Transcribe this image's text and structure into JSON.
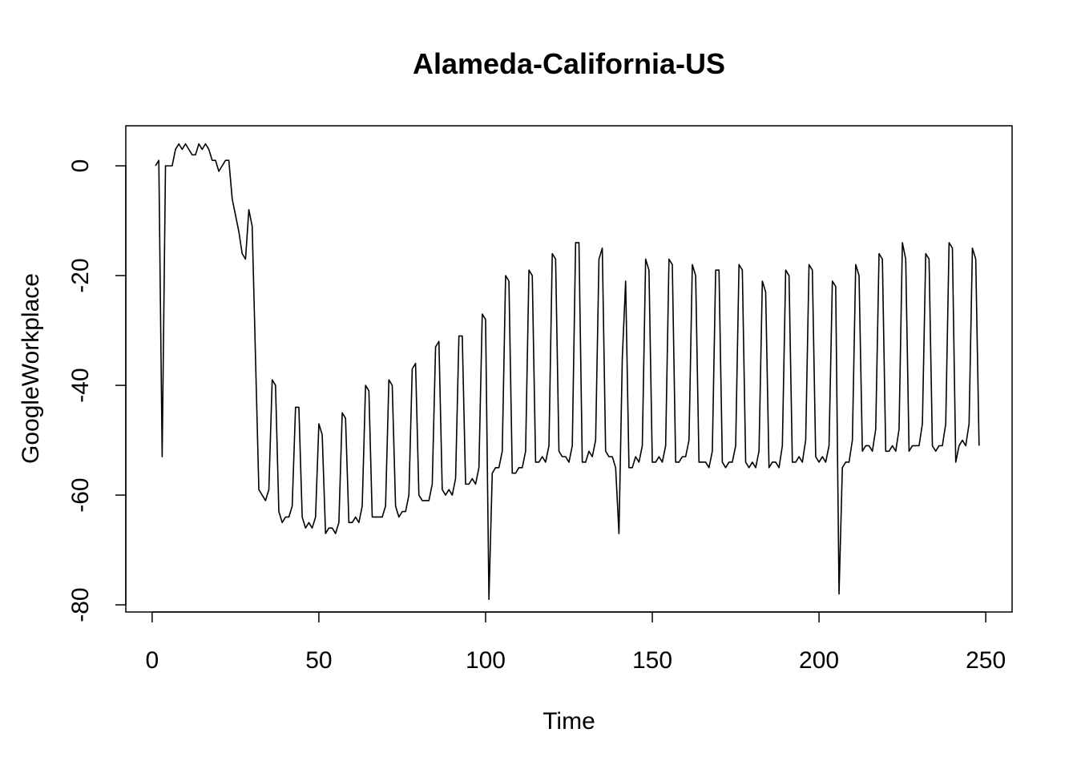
{
  "chart_data": {
    "type": "line",
    "title": "Alameda-California-US",
    "xlabel": "Time",
    "ylabel": "GoogleWorkplace",
    "xlim": [
      -7.9,
      257.9
    ],
    "ylim": [
      -81.3,
      7.3
    ],
    "x_ticks": [
      0,
      50,
      100,
      150,
      200,
      250
    ],
    "y_ticks": [
      0,
      -20,
      -40,
      -60,
      -80
    ],
    "x_tick_labels": [
      "0",
      "50",
      "100",
      "150",
      "200",
      "250"
    ],
    "y_tick_labels": [
      "0",
      "-20",
      "-40",
      "-60",
      "-80"
    ],
    "grid": false,
    "legend": "none",
    "line_color": "#000000",
    "series": [
      {
        "x_start": 1,
        "values": [
          0,
          1,
          -53,
          0,
          0,
          0,
          3,
          4,
          3,
          4,
          3,
          2,
          2,
          4,
          3,
          4,
          3,
          1,
          1,
          -1,
          0,
          1,
          1,
          -6,
          -9,
          -12,
          -16,
          -17,
          -8,
          -11,
          -35,
          -59,
          -60,
          -61,
          -59,
          -39,
          -40,
          -63,
          -65,
          -64,
          -64,
          -62,
          -44,
          -44,
          -64,
          -66,
          -65,
          -66,
          -64,
          -47,
          -49,
          -67,
          -66,
          -66,
          -67,
          -65,
          -45,
          -46,
          -65,
          -65,
          -64,
          -65,
          -62,
          -40,
          -41,
          -64,
          -64,
          -64,
          -64,
          -62,
          -39,
          -40,
          -62,
          -64,
          -63,
          -63,
          -60,
          -37,
          -36,
          -60,
          -61,
          -61,
          -61,
          -58,
          -33,
          -32,
          -59,
          -60,
          -59,
          -60,
          -57,
          -31,
          -31,
          -58,
          -58,
          -57,
          -58,
          -55,
          -27,
          -28,
          -79,
          -56,
          -55,
          -55,
          -52,
          -20,
          -21,
          -56,
          -56,
          -55,
          -55,
          -52,
          -19,
          -20,
          -54,
          -54,
          -53,
          -54,
          -51,
          -16,
          -17,
          -52,
          -53,
          -53,
          -54,
          -51,
          -14,
          -14,
          -54,
          -54,
          -52,
          -53,
          -50,
          -17,
          -15,
          -52,
          -53,
          -53,
          -55,
          -67,
          -35,
          -21,
          -55,
          -55,
          -53,
          -54,
          -51,
          -17,
          -19,
          -54,
          -54,
          -53,
          -54,
          -51,
          -17,
          -18,
          -54,
          -54,
          -53,
          -53,
          -50,
          -18,
          -20,
          -54,
          -54,
          -54,
          -55,
          -52,
          -19,
          -19,
          -54,
          -55,
          -54,
          -54,
          -51,
          -18,
          -19,
          -54,
          -55,
          -54,
          -55,
          -52,
          -21,
          -23,
          -55,
          -54,
          -54,
          -55,
          -51,
          -19,
          -20,
          -54,
          -54,
          -53,
          -54,
          -50,
          -18,
          -19,
          -53,
          -54,
          -53,
          -54,
          -51,
          -21,
          -22,
          -78,
          -55,
          -54,
          -54,
          -50,
          -18,
          -20,
          -52,
          -51,
          -51,
          -52,
          -48,
          -16,
          -17,
          -52,
          -52,
          -51,
          -52,
          -48,
          -14,
          -17,
          -52,
          -51,
          -51,
          -51,
          -47,
          -16,
          -17,
          -51,
          -52,
          -51,
          -51,
          -47,
          -14,
          -15,
          -54,
          -51,
          -50,
          -51,
          -47,
          -15,
          -17,
          -51
        ]
      }
    ]
  }
}
